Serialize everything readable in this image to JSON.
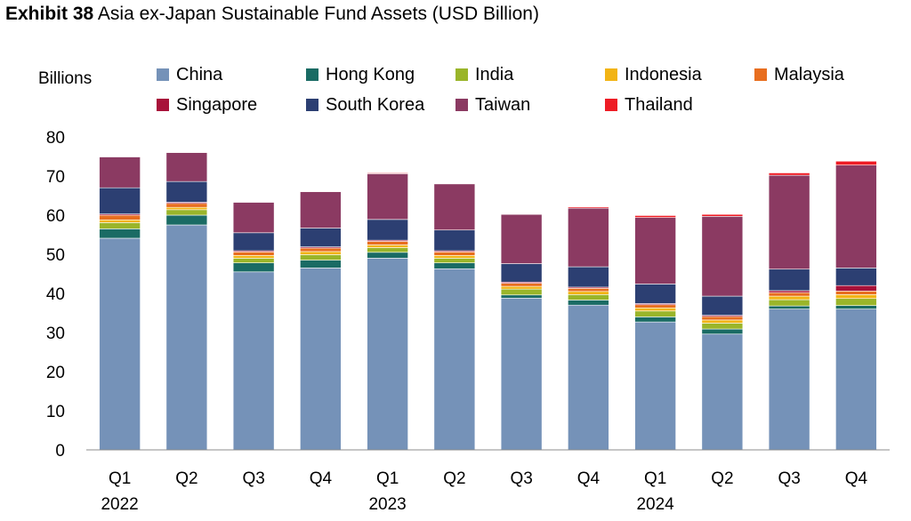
{
  "title": {
    "label": "Exhibit 38",
    "text": "Asia ex-Japan Sustainable Fund Assets (USD Billion)"
  },
  "chart_data": {
    "type": "bar",
    "stacked": true,
    "ylabel": "Billions",
    "ylim": [
      0,
      80
    ],
    "yticks": [
      0,
      10,
      20,
      30,
      40,
      50,
      60,
      70,
      80
    ],
    "grid": false,
    "legend": "top",
    "categories": [
      "Q1",
      "Q2",
      "Q3",
      "Q4",
      "Q1",
      "Q2",
      "Q3",
      "Q4",
      "Q1",
      "Q2",
      "Q3",
      "Q4"
    ],
    "years": [
      {
        "label": "2022",
        "index": 0
      },
      {
        "label": "2023",
        "index": 4
      },
      {
        "label": "2024",
        "index": 8
      }
    ],
    "series": [
      {
        "name": "China",
        "color": "#7592b8",
        "values": [
          54.1,
          57.5,
          45.5,
          46.5,
          49.0,
          46.3,
          38.8,
          37.0,
          32.7,
          29.6,
          36.0,
          36.0
        ]
      },
      {
        "name": "Hong Kong",
        "color": "#1a6b64",
        "values": [
          2.4,
          2.5,
          2.3,
          2.0,
          1.5,
          1.5,
          0.8,
          1.3,
          1.3,
          1.3,
          0.8,
          0.9
        ]
      },
      {
        "name": "India",
        "color": "#9ab52a",
        "values": [
          1.6,
          1.4,
          1.2,
          1.4,
          1.2,
          1.2,
          1.5,
          1.4,
          1.5,
          1.5,
          1.6,
          1.8
        ]
      },
      {
        "name": "Indonesia",
        "color": "#f2b415",
        "values": [
          0.7,
          0.6,
          0.7,
          0.8,
          0.7,
          0.7,
          0.7,
          0.8,
          0.8,
          0.8,
          0.9,
          1.0
        ]
      },
      {
        "name": "Malaysia",
        "color": "#e86e1f",
        "values": [
          1.2,
          1.0,
          0.9,
          0.9,
          0.9,
          0.9,
          0.8,
          0.8,
          0.8,
          0.9,
          0.9,
          0.9
        ]
      },
      {
        "name": "Singapore",
        "color": "#a8123a",
        "values": [
          0.3,
          0.3,
          0.3,
          0.3,
          0.3,
          0.3,
          0.3,
          0.3,
          0.3,
          0.3,
          0.5,
          1.4
        ]
      },
      {
        "name": "South Korea",
        "color": "#2c3f72",
        "values": [
          6.7,
          5.3,
          4.6,
          4.8,
          5.3,
          5.3,
          4.7,
          5.2,
          5.0,
          4.9,
          5.5,
          4.5
        ]
      },
      {
        "name": "Taiwan",
        "color": "#8b3a62",
        "values": [
          7.9,
          7.4,
          7.8,
          9.3,
          11.7,
          11.8,
          12.6,
          15.0,
          17.0,
          20.4,
          24.0,
          26.3
        ]
      },
      {
        "name": "Thailand",
        "color": "#ee1c25",
        "values": [
          0.1,
          0.1,
          0.1,
          0.1,
          0.2,
          0.1,
          0.1,
          0.3,
          0.5,
          0.5,
          0.6,
          1.0
        ]
      }
    ]
  }
}
